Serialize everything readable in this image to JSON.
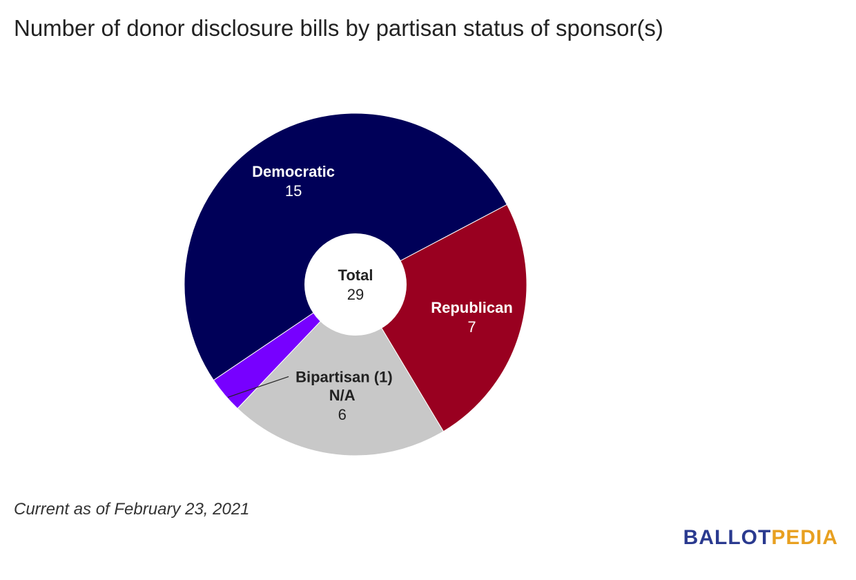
{
  "colors": {
    "democratic": "#000058",
    "republican": "#990020",
    "na": "#c8c8c8",
    "bipartisan": "#7700ff",
    "logo_primary": "#2a3a8f",
    "logo_accent": "#e8a020"
  },
  "chart_data": {
    "type": "pie",
    "title": "Number of donor disclosure bills by partisan status of sponsor(s)",
    "center_label": "Total",
    "center_value": "29",
    "slices": [
      {
        "label": "Democratic",
        "value": 15,
        "color": "#000058",
        "label_color": "#ffffff",
        "value_text": "15"
      },
      {
        "label": "Republican",
        "value": 7,
        "color": "#990020",
        "label_color": "#ffffff",
        "value_text": "7"
      },
      {
        "label": "N/A",
        "value": 6,
        "color": "#c8c8c8",
        "label_color": "#222222",
        "value_text": "6"
      },
      {
        "label": "Bipartisan",
        "value": 1,
        "color": "#7700ff",
        "external_label": "Bipartisan (1)"
      }
    ],
    "footnote": "Current as of February 23, 2021"
  },
  "logo": {
    "part_a": "BALLOT",
    "part_b": "PEDIA"
  }
}
